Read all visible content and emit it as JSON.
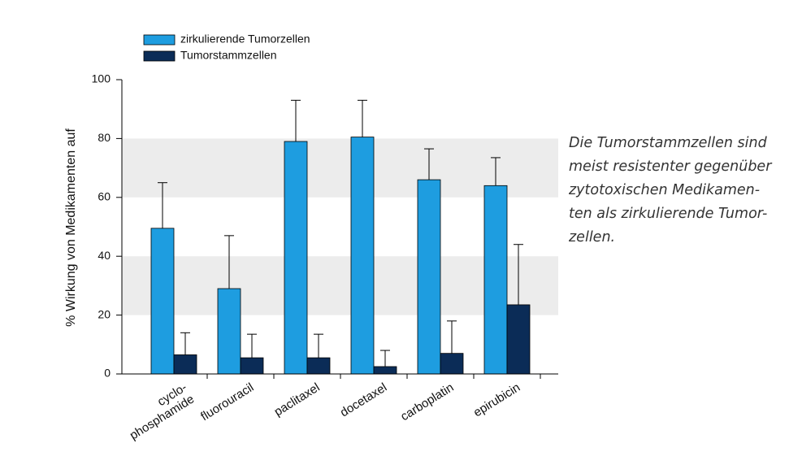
{
  "chart_data": {
    "type": "bar",
    "ylabel": "% Wirkung von Medikamenten auf",
    "categories": [
      "cyclo-\nphosphamide",
      "fluorouracil",
      "paclitaxel",
      "docetaxel",
      "carboplatin",
      "epirubicin"
    ],
    "series": [
      {
        "name": "zirkulierende Tumorzellen",
        "color": "#1e9de0",
        "values": [
          49.5,
          29,
          79,
          80.5,
          66,
          64
        ],
        "errors": [
          15.5,
          18,
          14,
          12.5,
          10.5,
          9.5
        ]
      },
      {
        "name": "Tumorstammzellen",
        "color": "#0b2c57",
        "values": [
          6.5,
          5.5,
          5.5,
          2.5,
          7,
          23.5
        ],
        "errors": [
          7.5,
          8,
          8,
          5.5,
          11,
          20.5
        ]
      }
    ],
    "ylim": [
      0,
      100
    ],
    "yticks": [
      0,
      20,
      40,
      60,
      80,
      100
    ],
    "bands": [
      [
        20,
        40
      ],
      [
        60,
        80
      ]
    ],
    "band_color": "#ececec",
    "annotation": "Die Tumorstammzellen sind\nmeist resistenter gegenüber\nzytotoxischen  Medikamen-\nten als zirkulierende Tumor-\nzellen."
  }
}
